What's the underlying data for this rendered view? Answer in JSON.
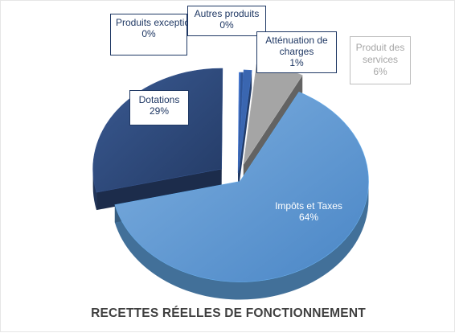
{
  "chart_data": {
    "type": "pie",
    "title": "RECETTES RÉELLES DE FONCTIONNEMENT",
    "slices": [
      {
        "label": "Impôts et Taxes",
        "percent_label": "64%",
        "value": 64,
        "color": "#5b9bd5"
      },
      {
        "label": "Dotations",
        "percent_label": "29%",
        "value": 29,
        "color": "#2e4a7d"
      },
      {
        "label": "Produits exceptionnels",
        "percent_label": "0%",
        "value": 0.2,
        "color": "#4472c4"
      },
      {
        "label": "Autres produits",
        "percent_label": "0%",
        "value": 0.3,
        "color": "#2f5597"
      },
      {
        "label": "Atténuation de charges",
        "percent_label": "1%",
        "value": 1,
        "color": "#3a66b0"
      },
      {
        "label": "Produit des services",
        "percent_label": "6%",
        "value": 6,
        "color": "#a5a5a5"
      }
    ]
  }
}
